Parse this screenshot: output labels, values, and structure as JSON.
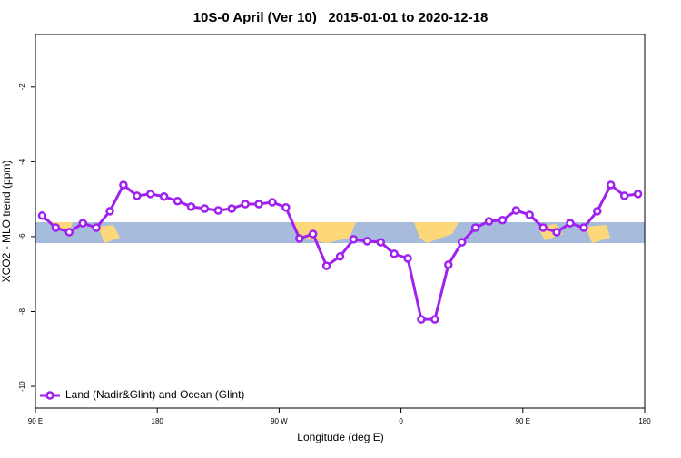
{
  "chart_data": {
    "type": "line",
    "title": "10S-0 April (Ver 10)   2015-01-01 to 2020-12-18",
    "xlabel": "Longitude (deg E)",
    "ylabel": "XCO2 - MLO trend (ppm)",
    "x": [
      95,
      105,
      115,
      125,
      135,
      145,
      155,
      165,
      175,
      185,
      195,
      205,
      215,
      225,
      235,
      245,
      255,
      265,
      275,
      285,
      295,
      305,
      315,
      325,
      335,
      345,
      355,
      365,
      375,
      385,
      395,
      405,
      415,
      425,
      435,
      445,
      455,
      465,
      475,
      485,
      495,
      505,
      515,
      525,
      535
    ],
    "series": [
      {
        "name": "Land (Nadir&Glint) and Ocean (Glint)",
        "color": "#a020f0",
        "values": [
          -5.44,
          -5.76,
          -5.88,
          -5.64,
          -5.76,
          -5.32,
          -4.62,
          -4.91,
          -4.86,
          -4.93,
          -5.05,
          -5.2,
          -5.25,
          -5.3,
          -5.25,
          -5.13,
          -5.13,
          -5.08,
          -5.22,
          -6.05,
          -5.93,
          -6.78,
          -6.53,
          -6.07,
          -6.12,
          -6.15,
          -6.46,
          -6.58,
          -8.21,
          -8.21,
          -6.75,
          -6.15,
          -5.76,
          -5.59,
          -5.56,
          -5.3,
          -5.42,
          -5.76,
          -5.88,
          -5.64,
          -5.76,
          -5.32,
          -4.62,
          -4.91,
          -4.86
        ]
      }
    ],
    "xlim": [
      90,
      540
    ],
    "xticks": [
      {
        "value": 90,
        "label": "90 E"
      },
      180,
      {
        "value": 270,
        "label": "90 W"
      },
      {
        "value": 360,
        "label": "0"
      },
      {
        "value": 450,
        "label": "90 E"
      },
      {
        "value": 540,
        "label": "180"
      }
    ],
    "ylim": [
      -10.58,
      -0.6
    ],
    "yticks": [
      -10,
      -8,
      -6,
      -4,
      -2
    ],
    "legend": "bottom-left"
  }
}
